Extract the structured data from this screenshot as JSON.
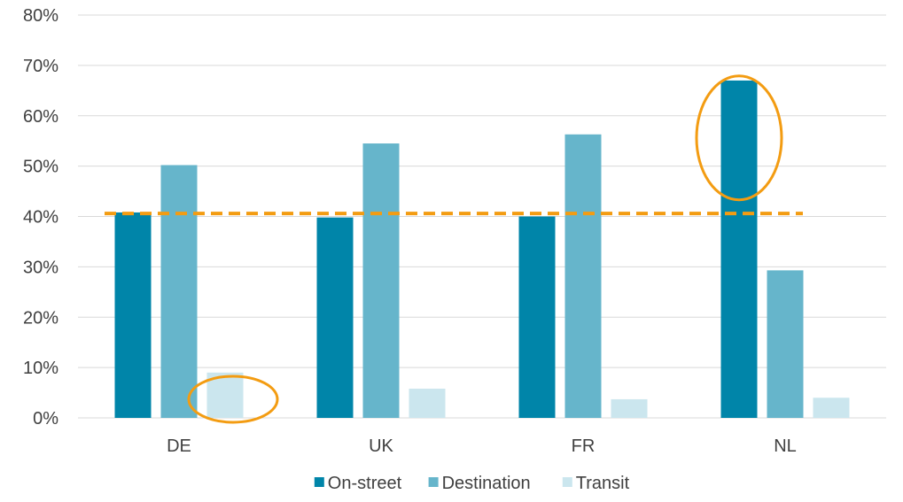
{
  "chart_data": {
    "type": "bar",
    "categories": [
      "DE",
      "UK",
      "FR",
      "NL"
    ],
    "series": [
      {
        "name": "On-street",
        "values": [
          40.8,
          39.8,
          40.0,
          67.0
        ],
        "color": "#0085a9"
      },
      {
        "name": "Destination",
        "values": [
          50.2,
          54.5,
          56.3,
          29.3
        ],
        "color": "#66b5cb"
      },
      {
        "name": "Transit",
        "values": [
          9.0,
          5.8,
          3.7,
          4.0
        ],
        "color": "#cbe6ee"
      }
    ],
    "ylim": [
      0,
      80
    ],
    "yticks": [
      0,
      10,
      20,
      30,
      40,
      50,
      60,
      70,
      80
    ],
    "ytick_labels": [
      "0%",
      "10%",
      "20%",
      "30%",
      "40%",
      "50%",
      "60%",
      "70%",
      "80%"
    ],
    "grid": true,
    "legend": "bottom",
    "annotations": [
      {
        "type": "reference-line",
        "style": "dashed",
        "value": 40.6,
        "color": "#f39c12"
      },
      {
        "type": "highlight-ellipse",
        "category": "DE",
        "series": "Transit",
        "color": "#f39c12"
      },
      {
        "type": "highlight-ellipse",
        "category": "NL",
        "series": "On-street",
        "color": "#f39c12"
      }
    ]
  }
}
